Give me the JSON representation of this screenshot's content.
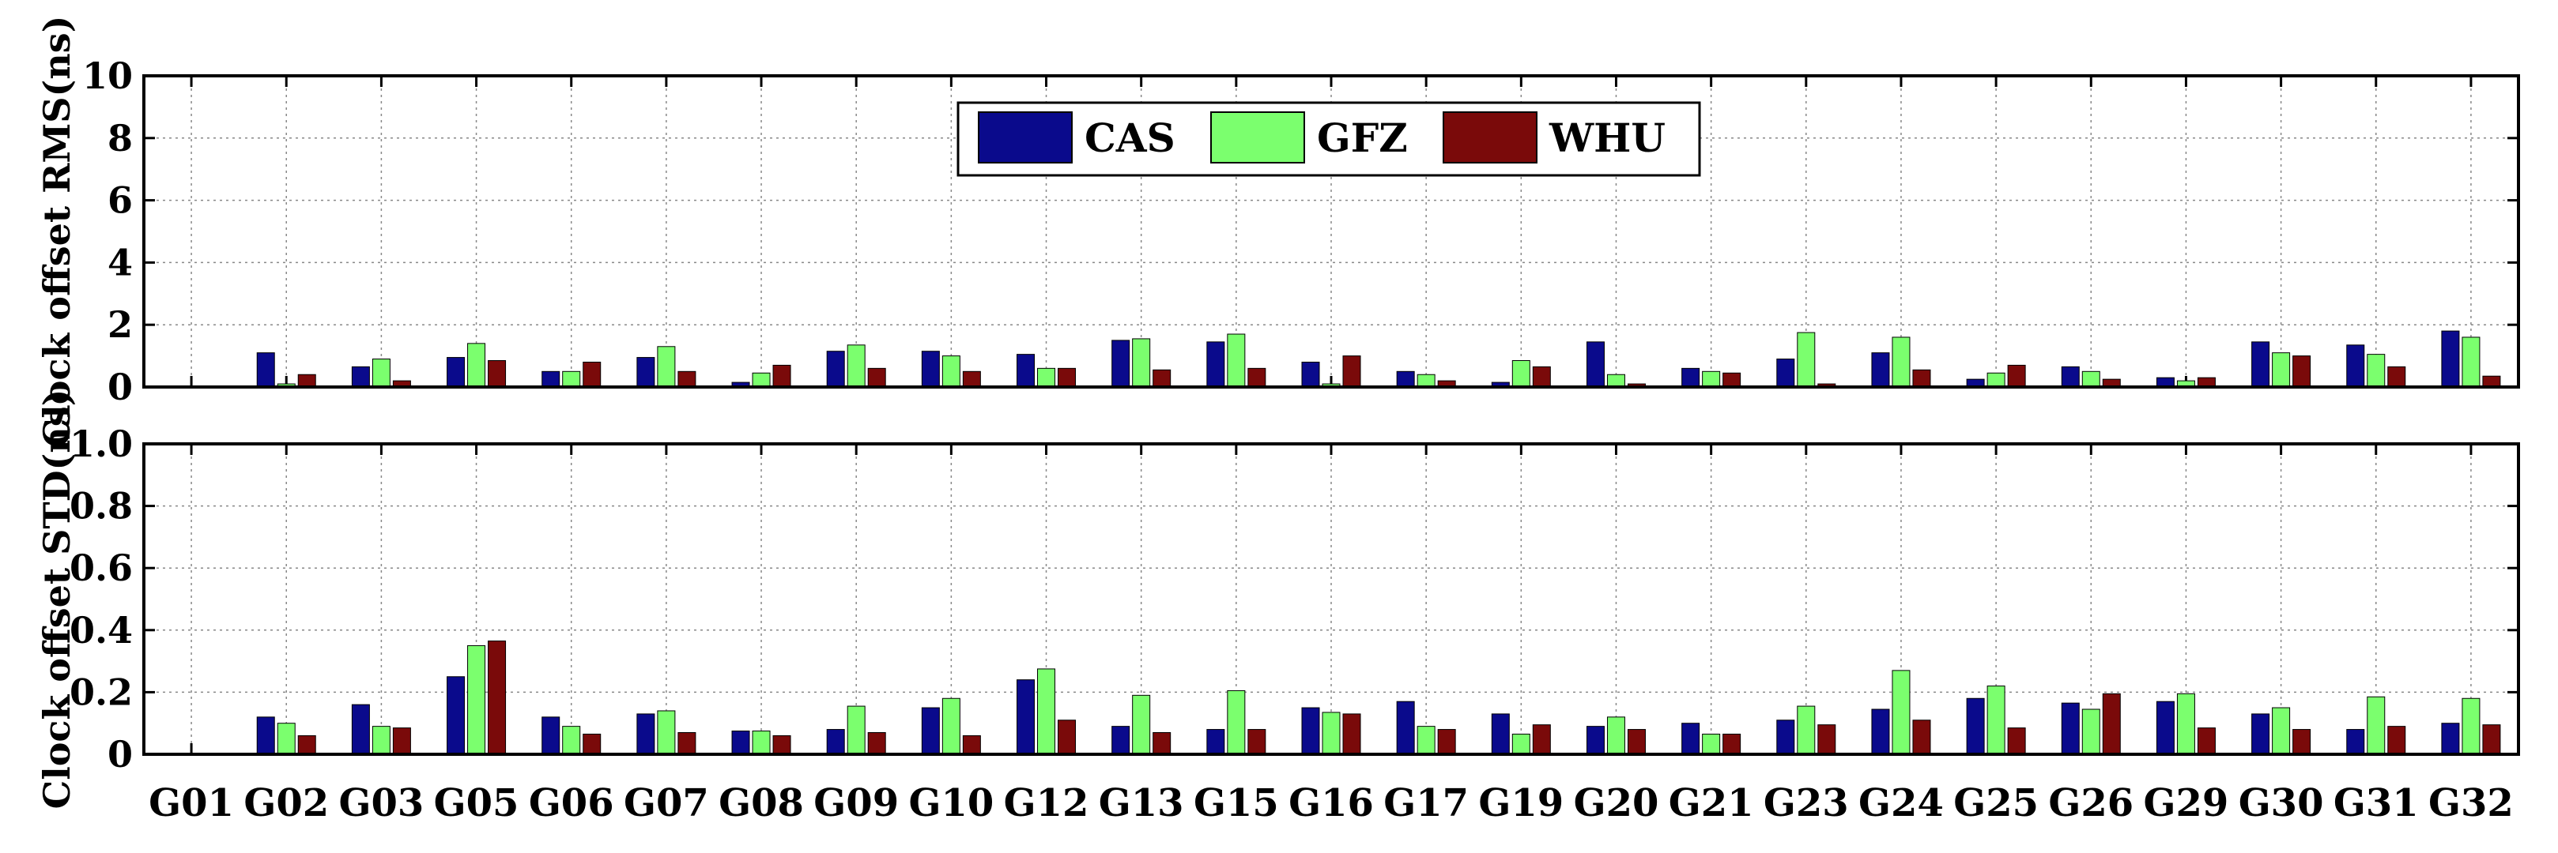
{
  "chart_data": [
    {
      "type": "bar",
      "ylabel": "Clock offset RMS(ns)",
      "ylim": [
        0,
        10
      ],
      "yticks": [
        "0",
        "2",
        "4",
        "6",
        "8",
        "10"
      ],
      "grid": true,
      "legend_position": "top-center",
      "categories": [
        "G01",
        "G02",
        "G03",
        "G05",
        "G06",
        "G07",
        "G08",
        "G09",
        "G10",
        "G12",
        "G13",
        "G15",
        "G16",
        "G17",
        "G19",
        "G20",
        "G21",
        "G23",
        "G24",
        "G25",
        "G26",
        "G29",
        "G30",
        "G31",
        "G32"
      ],
      "series": [
        {
          "name": "CAS",
          "values": [
            0,
            1.1,
            0.65,
            0.95,
            0.5,
            0.95,
            0.15,
            1.15,
            1.15,
            1.05,
            1.5,
            1.45,
            0.8,
            0.5,
            0.15,
            1.45,
            0.6,
            0.9,
            1.1,
            0.25,
            0.65,
            0.3,
            1.45,
            1.35,
            1.8
          ]
        },
        {
          "name": "GFZ",
          "values": [
            0,
            0.1,
            0.9,
            1.4,
            0.5,
            1.3,
            0.45,
            1.35,
            1.0,
            0.6,
            1.55,
            1.7,
            0.1,
            0.4,
            0.85,
            0.4,
            0.5,
            1.75,
            1.6,
            0.45,
            0.5,
            0.2,
            1.1,
            1.05,
            1.6
          ]
        },
        {
          "name": "WHU",
          "values": [
            0,
            0.4,
            0.2,
            0.85,
            0.8,
            0.5,
            0.7,
            0.6,
            0.5,
            0.6,
            0.55,
            0.6,
            1.0,
            0.2,
            0.65,
            0.1,
            0.45,
            0.1,
            0.55,
            0.7,
            0.25,
            0.3,
            1.0,
            0.65,
            0.35
          ]
        }
      ]
    },
    {
      "type": "bar",
      "ylabel": "Clock offset STD(ns)",
      "ylim": [
        0,
        1.0
      ],
      "yticks": [
        "0",
        "0.2",
        "0.4",
        "0.6",
        "0.8",
        "1.0"
      ],
      "grid": true,
      "categories": [
        "G01",
        "G02",
        "G03",
        "G05",
        "G06",
        "G07",
        "G08",
        "G09",
        "G10",
        "G12",
        "G13",
        "G15",
        "G16",
        "G17",
        "G19",
        "G20",
        "G21",
        "G23",
        "G24",
        "G25",
        "G26",
        "G29",
        "G30",
        "G31",
        "G32"
      ],
      "series": [
        {
          "name": "CAS",
          "values": [
            0,
            0.12,
            0.16,
            0.25,
            0.12,
            0.13,
            0.075,
            0.08,
            0.15,
            0.24,
            0.09,
            0.08,
            0.15,
            0.17,
            0.13,
            0.09,
            0.1,
            0.11,
            0.145,
            0.18,
            0.165,
            0.17,
            0.13,
            0.08,
            0.1
          ]
        },
        {
          "name": "GFZ",
          "values": [
            0,
            0.1,
            0.09,
            0.35,
            0.09,
            0.14,
            0.075,
            0.155,
            0.18,
            0.275,
            0.19,
            0.205,
            0.135,
            0.09,
            0.065,
            0.12,
            0.065,
            0.155,
            0.27,
            0.22,
            0.145,
            0.195,
            0.15,
            0.185,
            0.18
          ]
        },
        {
          "name": "WHU",
          "values": [
            0,
            0.06,
            0.085,
            0.365,
            0.065,
            0.07,
            0.06,
            0.07,
            0.06,
            0.11,
            0.07,
            0.08,
            0.13,
            0.08,
            0.095,
            0.08,
            0.065,
            0.095,
            0.11,
            0.085,
            0.195,
            0.085,
            0.08,
            0.09,
            0.095
          ]
        }
      ]
    }
  ],
  "colors": {
    "CAS": "#0a0a8c",
    "GFZ": "#7bff6e",
    "WHU": "#7a0a0a"
  }
}
